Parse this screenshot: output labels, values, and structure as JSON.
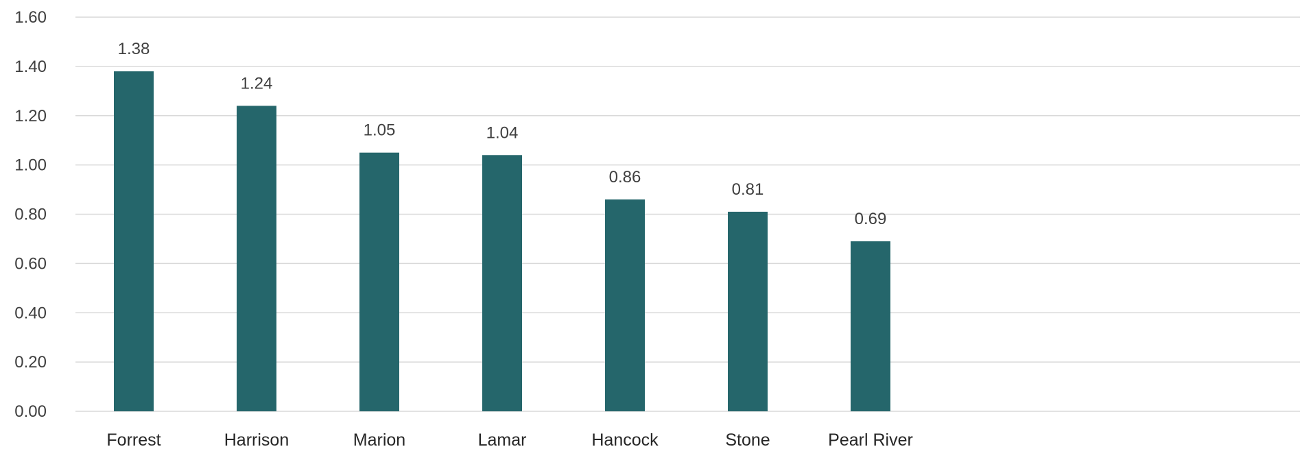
{
  "chart_data": {
    "type": "bar",
    "categories": [
      "Forrest",
      "Harrison",
      "Marion",
      "Lamar",
      "Hancock",
      "Stone",
      "Pearl River"
    ],
    "values": [
      1.38,
      1.24,
      1.05,
      1.04,
      0.86,
      0.81,
      0.69
    ],
    "value_labels": [
      "1.38",
      "1.24",
      "1.05",
      "1.04",
      "0.86",
      "0.81",
      "0.69"
    ],
    "y_ticks": [
      "0.00",
      "0.20",
      "0.40",
      "0.60",
      "0.80",
      "1.00",
      "1.20",
      "1.40",
      "1.60"
    ],
    "ylim": [
      0,
      1.6
    ],
    "title": "",
    "xlabel": "",
    "ylabel": "",
    "grid": true,
    "legend": "none",
    "bar_color": "#25666b",
    "gridline_color": "#d9d9d9"
  }
}
